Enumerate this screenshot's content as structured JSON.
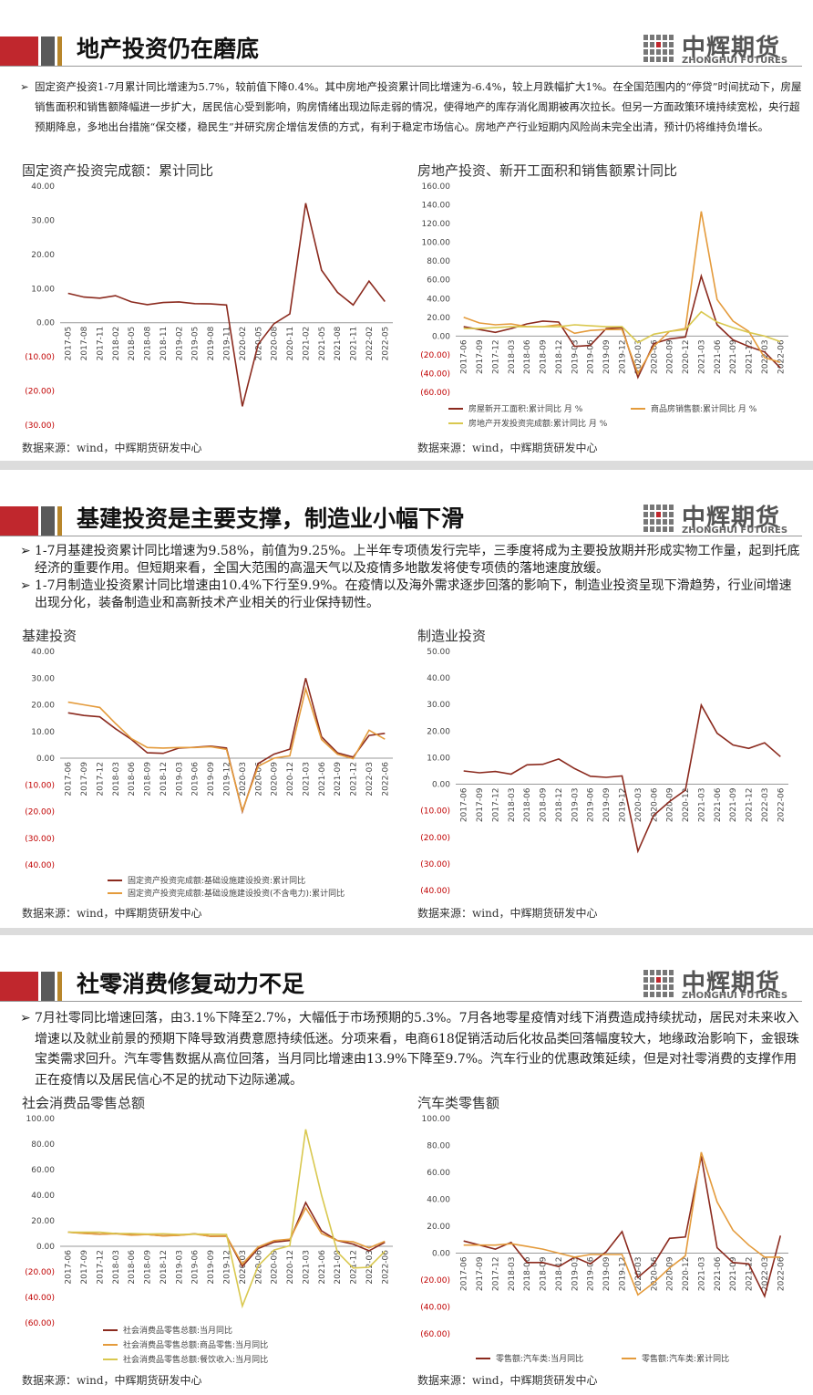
{
  "logo": {
    "name": "中辉期货",
    "subtitle": "ZHONGHUI FUTURES"
  },
  "slides": [
    {
      "title": "地产投资仍在磨底",
      "bullets": [
        "固定资产投资1-7月累计同比增速为5.7%，较前值下降0.4%。其中房地产投资累计同比增速为-6.4%，较上月跌幅扩大1%。在全国范围内的“停贷”时间扰动下，房屋销售面积和销售额降幅进一步扩大，居民信心受到影响，购房情绪出现边际走弱的情况，使得地产的库存消化周期被再次拉长。但另一方面政策环境持续宽松，央行超预期降息，多地出台措施“保交楼，稳民生”并研究房企增信发债的方式，有利于稳定市场信心。房地产产行业短期内风险尚未完全出清，预计仍将维持负增长。"
      ]
    },
    {
      "title": "基建投资是主要支撑，制造业小幅下滑",
      "bullets": [
        "1-7月基建投资累计同比增速为9.58%，前值为9.25%。上半年专项债发行完毕，三季度将成为主要投放期并形成实物工作量，起到托底经济的重要作用。但短期来看，全国大范围的高温天气以及疫情多地散发将使专项债的落地速度放缓。",
        "1-7月制造业投资累计同比增速由10.4%下行至9.9%。在疫情以及海外需求逐步回落的影响下，制造业投资呈现下滑趋势，行业间增速出现分化，装备制造业和高新技术产业相关的行业保持韧性。"
      ]
    },
    {
      "title": "社零消费修复动力不足",
      "bullets": [
        "7月社零同比增速回落，由3.1%下降至2.7%，大幅低于市场预期的5.3%。7月各地零星疫情对线下消费造成持续扰动，居民对未来收入增速以及就业前景的预期下降导致消费意愿持续低迷。分项来看，电商618促销活动后化妆品类回落幅度较大，地缘政治影响下，金银珠宝类需求回升。汽车零售数据从高位回落，当月同比增速由13.9%下降至9.7%。汽车行业的优惠政策延续，但是对社零消费的支撑作用正在疫情以及居民信心不足的扰动下边际递减。"
      ]
    }
  ],
  "chart_data": [
    {
      "type": "line",
      "title": "固定资产投资完成额：累计同比",
      "source": "数据来源：wind，中辉期货研发中心",
      "categories": [
        "2017-05",
        "2017-08",
        "2017-11",
        "2018-02",
        "2018-05",
        "2018-08",
        "2018-11",
        "2019-02",
        "2019-05",
        "2019-08",
        "2019-11",
        "2020-02",
        "2020-05",
        "2020-08",
        "2020-11",
        "2021-02",
        "2021-05",
        "2021-08",
        "2021-11",
        "2022-02",
        "2022-05"
      ],
      "series": [
        {
          "color": "#8b2a1e",
          "values": [
            8.6,
            7.5,
            7.2,
            7.9,
            6.1,
            5.3,
            5.9,
            6.1,
            5.6,
            5.5,
            5.2,
            -24.5,
            -6.3,
            -0.3,
            2.6,
            35,
            15.4,
            8.9,
            5.2,
            12.2,
            6.2
          ]
        }
      ],
      "ylim": [
        -30,
        40
      ],
      "yticks": [
        {
          "value": -30,
          "label": "(30.00)"
        },
        {
          "value": -20,
          "label": "(20.00)"
        },
        {
          "value": -10,
          "label": "(10.00)"
        },
        {
          "value": 0,
          "label": "0.00"
        },
        {
          "value": 10,
          "label": "10.00"
        },
        {
          "value": 20,
          "label": "20.00"
        },
        {
          "value": 30,
          "label": "30.00"
        },
        {
          "value": 40,
          "label": "40.00"
        }
      ]
    },
    {
      "type": "line",
      "title": "房地产投资、新开工面积和销售额累计同比",
      "source": "数据来源：wind，中辉期货研发中心",
      "categories": [
        "2017-06",
        "2017-09",
        "2017-12",
        "2018-03",
        "2018-06",
        "2018-09",
        "2018-12",
        "2019-03",
        "2019-06",
        "2019-09",
        "2019-12",
        "2020-03",
        "2020-06",
        "2020-09",
        "2020-12",
        "2021-03",
        "2021-06",
        "2021-09",
        "2021-12",
        "2022-03",
        "2022-06"
      ],
      "series": [
        {
          "name": "房屋新开工面积:累计同比 月 %",
          "color": "#8b2a1e",
          "values": [
            10,
            7,
            4,
            8,
            13,
            16,
            15,
            -11,
            -10,
            8,
            9,
            -44,
            -8,
            -3,
            -1,
            64,
            12,
            -4,
            -11,
            -17,
            -34
          ]
        },
        {
          "name": "商品房销售额:累计同比 月 %",
          "color": "#e49b3c",
          "values": [
            20,
            14,
            12,
            13,
            10,
            10,
            12,
            3,
            6,
            7,
            7,
            -40,
            -11,
            5,
            8,
            133,
            39,
            16,
            5,
            -23,
            -28
          ]
        },
        {
          "name": "房地产开发投资完成额:累计同比 月 %",
          "color": "#d9c84f",
          "values": [
            8,
            8,
            9,
            10,
            10,
            10,
            10,
            12,
            11,
            10,
            10,
            -7,
            2,
            5,
            7,
            26,
            15,
            9,
            4,
            0,
            -6
          ]
        }
      ],
      "ylim": [
        -60,
        160
      ],
      "yticks": [
        {
          "value": -60,
          "label": "(60.00)"
        },
        {
          "value": -40,
          "label": "(40.00)"
        },
        {
          "value": -20,
          "label": "(20.00)"
        },
        {
          "value": 0,
          "label": "0.00"
        },
        {
          "value": 20,
          "label": "20.00"
        },
        {
          "value": 40,
          "label": "40.00"
        },
        {
          "value": 60,
          "label": "60.00"
        },
        {
          "value": 80,
          "label": "80.00"
        },
        {
          "value": 100,
          "label": "100.00"
        },
        {
          "value": 120,
          "label": "120.00"
        },
        {
          "value": 140,
          "label": "140.00"
        },
        {
          "value": 160,
          "label": "160.00"
        }
      ]
    },
    {
      "type": "line",
      "title": "基建投资",
      "source": "数据来源：wind，中辉期货研发中心",
      "categories": [
        "2017-06",
        "2017-09",
        "2017-12",
        "2018-03",
        "2018-06",
        "2018-09",
        "2018-12",
        "2019-03",
        "2019-06",
        "2019-09",
        "2019-12",
        "2020-03",
        "2020-06",
        "2020-09",
        "2020-12",
        "2021-03",
        "2021-06",
        "2021-09",
        "2021-12",
        "2022-03",
        "2022-06"
      ],
      "series": [
        {
          "name": "固定资产投资完成额:基础设施建设投资:累计同比",
          "color": "#8b2a1e",
          "values": [
            17,
            16,
            15.5,
            11,
            7,
            2,
            1.8,
            3.8,
            4.1,
            4.5,
            3.8,
            -20,
            -2,
            1.5,
            3.4,
            30,
            8,
            2,
            0.4,
            8.5,
            9.3
          ]
        },
        {
          "name": "固定资产投资完成额:基础设施建设投资(不含电力):累计同比",
          "color": "#e49b3c",
          "values": [
            21,
            20,
            19,
            13,
            7.3,
            4,
            3.8,
            4,
            4,
            4.3,
            3.3,
            -19.7,
            -3,
            0,
            0.9,
            26,
            7,
            1.5,
            -0.2,
            10.5,
            7.1
          ]
        }
      ],
      "ylim": [
        -40,
        40
      ],
      "yticks": [
        {
          "value": -40,
          "label": "(40.00)"
        },
        {
          "value": -30,
          "label": "(30.00)"
        },
        {
          "value": -20,
          "label": "(20.00)"
        },
        {
          "value": -10,
          "label": "(10.00)"
        },
        {
          "value": 0,
          "label": "0.00"
        },
        {
          "value": 10,
          "label": "10.00"
        },
        {
          "value": 20,
          "label": "20.00"
        },
        {
          "value": 30,
          "label": "30.00"
        },
        {
          "value": 40,
          "label": "40.00"
        }
      ]
    },
    {
      "type": "line",
      "title": "制造业投资",
      "source": "数据来源：wind，中辉期货研发中心",
      "categories": [
        "2017-06",
        "2017-09",
        "2017-12",
        "2018-03",
        "2018-06",
        "2018-09",
        "2018-12",
        "2019-03",
        "2019-06",
        "2019-09",
        "2019-12",
        "2020-03",
        "2020-06",
        "2020-09",
        "2020-12",
        "2021-03",
        "2021-06",
        "2021-09",
        "2021-12",
        "2022-03",
        "2022-06"
      ],
      "series": [
        {
          "color": "#8b2a1e",
          "values": [
            5,
            4.3,
            4.8,
            3.8,
            7.3,
            7.5,
            9.5,
            5.9,
            3,
            2.6,
            3.1,
            -25.2,
            -11.7,
            -6.5,
            -2.2,
            29.8,
            19.2,
            14.8,
            13.5,
            15.6,
            10.4
          ]
        }
      ],
      "ylim": [
        -40,
        50
      ],
      "yticks": [
        {
          "value": -40,
          "label": "(40.00)"
        },
        {
          "value": -30,
          "label": "(30.00)"
        },
        {
          "value": -20,
          "label": "(20.00)"
        },
        {
          "value": -10,
          "label": "(10.00)"
        },
        {
          "value": 0,
          "label": "0.00"
        },
        {
          "value": 10,
          "label": "10.00"
        },
        {
          "value": 20,
          "label": "20.00"
        },
        {
          "value": 30,
          "label": "30.00"
        },
        {
          "value": 40,
          "label": "40.00"
        },
        {
          "value": 50,
          "label": "50.00"
        }
      ]
    },
    {
      "type": "line",
      "title": "社会消费品零售总额",
      "source": "数据来源：wind，中辉期货研发中心",
      "categories": [
        "2017-06",
        "2017-09",
        "2017-12",
        "2018-03",
        "2018-06",
        "2018-09",
        "2018-12",
        "2019-03",
        "2019-06",
        "2019-09",
        "2019-12",
        "2020-03",
        "2020-06",
        "2020-09",
        "2020-12",
        "2021-03",
        "2021-06",
        "2021-09",
        "2021-12",
        "2022-03",
        "2022-06"
      ],
      "series": [
        {
          "name": "社会消费品零售总额:当月同比",
          "color": "#8b2a1e",
          "values": [
            11,
            10.3,
            9.4,
            10.1,
            9,
            9.2,
            8.2,
            8.7,
            9.8,
            7.8,
            8,
            -15.8,
            -1.8,
            3.3,
            4.6,
            34.2,
            12.1,
            4.4,
            1.7,
            -3.5,
            3.1
          ]
        },
        {
          "name": "社会消费品零售总额:商品零售:当月同比",
          "color": "#e49b3c",
          "values": [
            11,
            10,
            9.5,
            9.8,
            8.7,
            9.2,
            8.1,
            8.6,
            9.5,
            7.9,
            7.9,
            -14,
            -0.5,
            4.4,
            5.6,
            30,
            10,
            4.5,
            3.5,
            -1.3,
            3.9
          ]
        },
        {
          "name": "社会消费品零售总额:餐饮收入:当月同比",
          "color": "#d9c84f",
          "values": [
            11,
            11,
            11,
            10,
            10,
            9.6,
            9.8,
            9.3,
            9.6,
            9.4,
            9.2,
            -46.8,
            -15.2,
            -2.9,
            0.4,
            91.6,
            40,
            -4.5,
            -17,
            -16.4,
            -4
          ]
        }
      ],
      "ylim": [
        -60,
        100
      ],
      "yticks": [
        {
          "value": -60,
          "label": "(60.00)"
        },
        {
          "value": -40,
          "label": "(40.00)"
        },
        {
          "value": -20,
          "label": "(20.00)"
        },
        {
          "value": 0,
          "label": "0.00"
        },
        {
          "value": 20,
          "label": "20.00"
        },
        {
          "value": 40,
          "label": "40.00"
        },
        {
          "value": 60,
          "label": "60.00"
        },
        {
          "value": 80,
          "label": "80.00"
        },
        {
          "value": 100,
          "label": "100.00"
        }
      ]
    },
    {
      "type": "line",
      "title": "汽车类零售额",
      "source": "数据来源：wind，中辉期货研发中心",
      "categories": [
        "2017-06",
        "2017-09",
        "2017-12",
        "2018-03",
        "2018-06",
        "2018-09",
        "2018-12",
        "2019-03",
        "2019-06",
        "2019-09",
        "2019-12",
        "2020-03",
        "2020-06",
        "2020-09",
        "2020-12",
        "2021-03",
        "2021-06",
        "2021-09",
        "2021-12",
        "2022-03",
        "2022-06"
      ],
      "series": [
        {
          "name": "零售额:汽车类:当月同比",
          "color": "#8b2a1e",
          "values": [
            9,
            6,
            3,
            8,
            -7,
            -7,
            -10,
            -3,
            -8,
            1,
            16,
            -18,
            -8,
            11,
            12,
            72,
            4,
            -7,
            -8,
            -32,
            13
          ]
        },
        {
          "name": "零售额:汽车类:累计同比",
          "color": "#e49b3c",
          "values": [
            6,
            6,
            6,
            7,
            5,
            3,
            0,
            -3,
            -1,
            -1,
            -1,
            -31,
            -22,
            -11,
            -2,
            75,
            38,
            17,
            6,
            -3,
            -3
          ]
        }
      ],
      "ylim": [
        -60,
        100
      ],
      "yticks": [
        {
          "value": -60,
          "label": "(60.00)"
        },
        {
          "value": -40,
          "label": "(40.00)"
        },
        {
          "value": -20,
          "label": "(20.00)"
        },
        {
          "value": 0,
          "label": "0.00"
        },
        {
          "value": 20,
          "label": "20.00"
        },
        {
          "value": 40,
          "label": "40.00"
        },
        {
          "value": 60,
          "label": "60.00"
        },
        {
          "value": 80,
          "label": "80.00"
        },
        {
          "value": 100,
          "label": "100.00"
        }
      ]
    }
  ]
}
